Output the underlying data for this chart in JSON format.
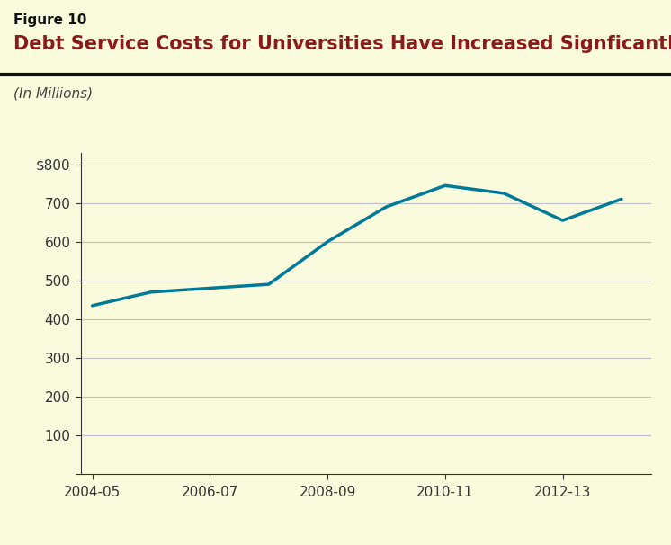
{
  "figure_label": "Figure 10",
  "title": "Debt Service Costs for Universities Have Increased Signficantly",
  "subtitle": "(In Millions)",
  "title_color": "#8B1A1A",
  "figure_label_color": "#111111",
  "subtitle_color": "#444444",
  "background_color": "#FAFADC",
  "line_color": "#007A99",
  "line_width": 2.5,
  "x_values": [
    0,
    1,
    2,
    3,
    4,
    5,
    6,
    7,
    8,
    9
  ],
  "y_values": [
    435,
    470,
    480,
    490,
    600,
    690,
    745,
    725,
    655,
    710
  ],
  "x_tick_positions": [
    0,
    2,
    4,
    6,
    8
  ],
  "x_tick_labels": [
    "2004-05",
    "2006-07",
    "2008-09",
    "2010-11",
    "2012-13"
  ],
  "y_tick_positions": [
    0,
    100,
    200,
    300,
    400,
    500,
    600,
    700,
    800
  ],
  "y_tick_labels": [
    "",
    "100",
    "200",
    "300",
    "400",
    "500",
    "600",
    "700",
    "$800"
  ],
  "ylim": [
    0,
    830
  ],
  "xlim": [
    -0.2,
    9.5
  ],
  "grid_color": "#BEBEC8",
  "axis_color": "#333333",
  "tick_color": "#333333",
  "tick_fontsize": 11,
  "subtitle_fontsize": 11,
  "title_fontsize": 15,
  "figure_label_fontsize": 11,
  "separator_color": "#111111",
  "separator_linewidth": 3.0
}
